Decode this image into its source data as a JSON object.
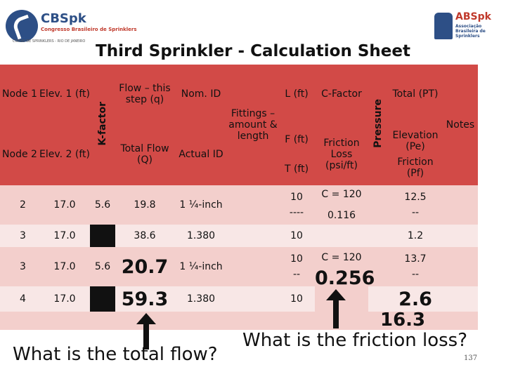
{
  "header": {
    "logo_left": {
      "title": "CBSpk",
      "subtitle": "Congresso Brasileiro de Sprinklers",
      "line": "CURSO DE SPRINKLERS - RIO DE JANEIRO"
    },
    "logo_right": {
      "title": "ABSpk",
      "subtitle": "Associação Brasileira de Sprinklers"
    },
    "title": "Third Sprinkler - Calculation Sheet"
  },
  "table": {
    "headers": {
      "node1": "Node 1",
      "elev1": "Elev. 1 (ft)",
      "kfactor": "K-factor",
      "flow_q": "Flow – this step (q)",
      "nom_id": "Nom. ID",
      "fittings": "Fittings – amount & length",
      "l_ft": "L (ft)",
      "c_factor": "C-Factor",
      "pressure": "Pressure",
      "total_pt": "Total (PT)",
      "notes": "Notes",
      "node2": "Node 2",
      "elev2": "Elev. 2 (ft)",
      "total_flow": "Total Flow (Q)",
      "actual_id": "Actual ID",
      "f_ft": "F (ft)",
      "t_ft": "T (ft)",
      "friction_loss": "Friction Loss (psi/ft)",
      "elevation_pe": "Elevation (Pe)",
      "friction_pf": "Friction (Pf)"
    },
    "rows": [
      {
        "node": "2",
        "elev": "17.0",
        "k": "5.6",
        "flow": "19.8",
        "pipe": "1 ¼-inch",
        "len": "10",
        "c": "C = 120",
        "pt": "12.5"
      },
      {
        "node": "",
        "elev": "",
        "k": "",
        "flow": "",
        "pipe": "",
        "len": "----",
        "c": "0.116",
        "pt": "--"
      },
      {
        "node": "3",
        "elev": "17.0",
        "k": "",
        "flow": "38.6",
        "pipe": "1.380",
        "len": "10",
        "c": "",
        "pt": "1.2"
      },
      {
        "node": "3",
        "elev": "17.0",
        "k": "5.6",
        "flow": "20.7",
        "pipe": "1 ¼-inch",
        "len": "10",
        "c": "C = 120",
        "pt": "13.7"
      },
      {
        "node": "",
        "elev": "",
        "k": "",
        "flow": "",
        "pipe": "",
        "len": "--",
        "c": "0.256",
        "pt": "--"
      },
      {
        "node": "4",
        "elev": "17.0",
        "k": "",
        "flow": "59.3",
        "pipe": "1.380",
        "len": "10",
        "c": "",
        "pt": "2.6"
      }
    ],
    "extra_total": "16.3"
  },
  "questions": {
    "left": "What is the total flow?",
    "right": "What is the friction loss?"
  },
  "page_number": "137",
  "colors": {
    "header_red": "#d24a47",
    "row_dark": "#f3cfcc",
    "row_light": "#f8e7e6",
    "brand_blue": "#2d4f86"
  }
}
